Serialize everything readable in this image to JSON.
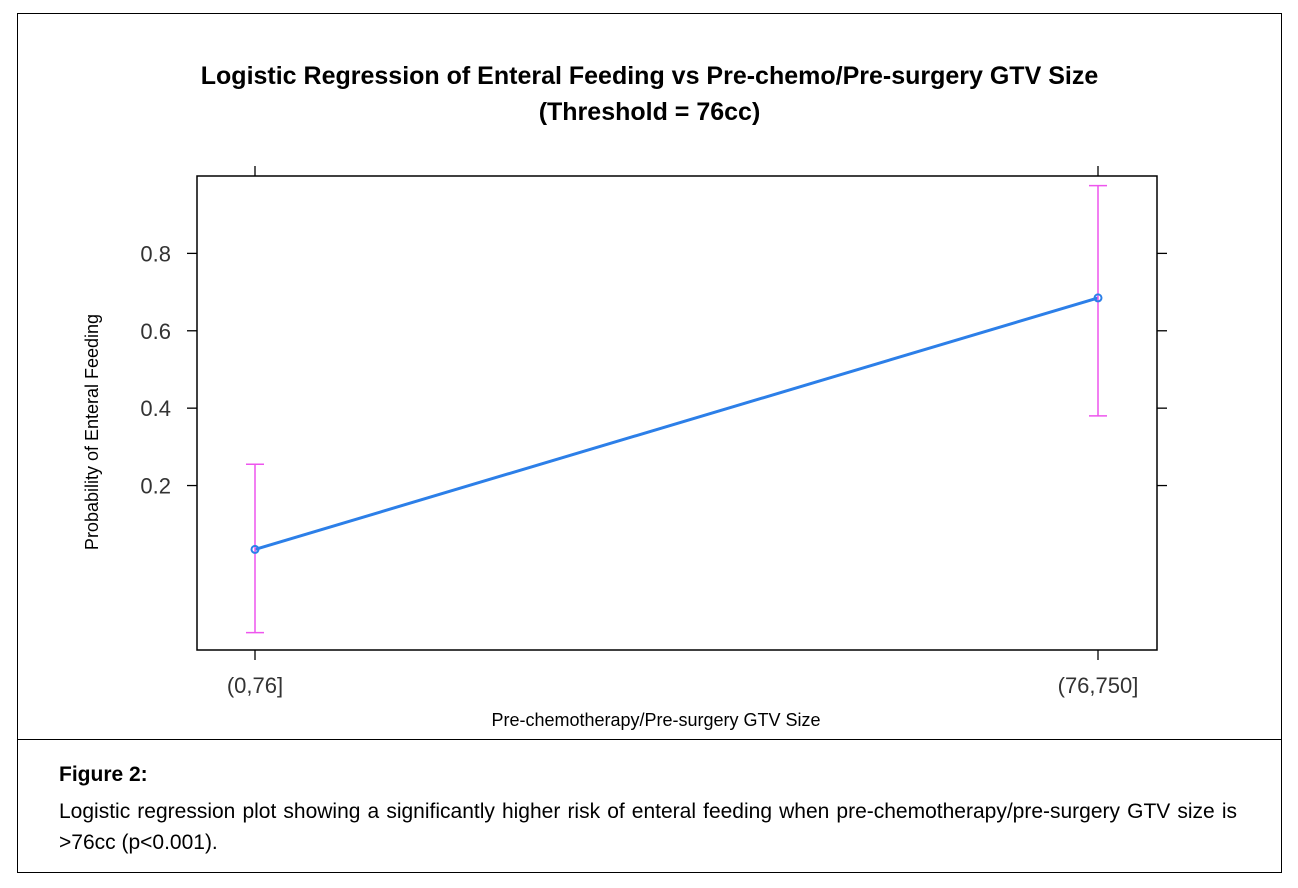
{
  "chart_data": {
    "type": "line",
    "title": "Logistic Regression of Enteral Feeding vs Pre-chemo/Pre-surgery GTV Size",
    "subtitle": "(Threshold = 76cc)",
    "xlabel": "Pre-chemotherapy/Pre-surgery GTV Size",
    "ylabel": "Probability of Enteral Feeding",
    "categories": [
      "(0,76]",
      "(76,750]"
    ],
    "series": [
      {
        "values": [
          0.035,
          0.685
        ],
        "lower": [
          -0.18,
          0.38
        ],
        "upper": [
          0.255,
          0.975
        ]
      }
    ],
    "yticks": [
      0.2,
      0.4,
      0.6,
      0.8
    ],
    "ytick_labels": [
      "0.2",
      "0.4",
      "0.6",
      "0.8"
    ],
    "ylim": [
      -0.225,
      1.0
    ],
    "grid": false,
    "colors": {
      "line": "#2c7fe8",
      "error_bar": "#ee55ee",
      "axis": "#000000"
    }
  },
  "caption": {
    "heading": "Figure 2:",
    "text": "Logistic regression plot showing a significantly higher risk of enteral feeding when pre-chemotherapy/pre-surgery GTV size is >76cc (p<0.001)."
  }
}
